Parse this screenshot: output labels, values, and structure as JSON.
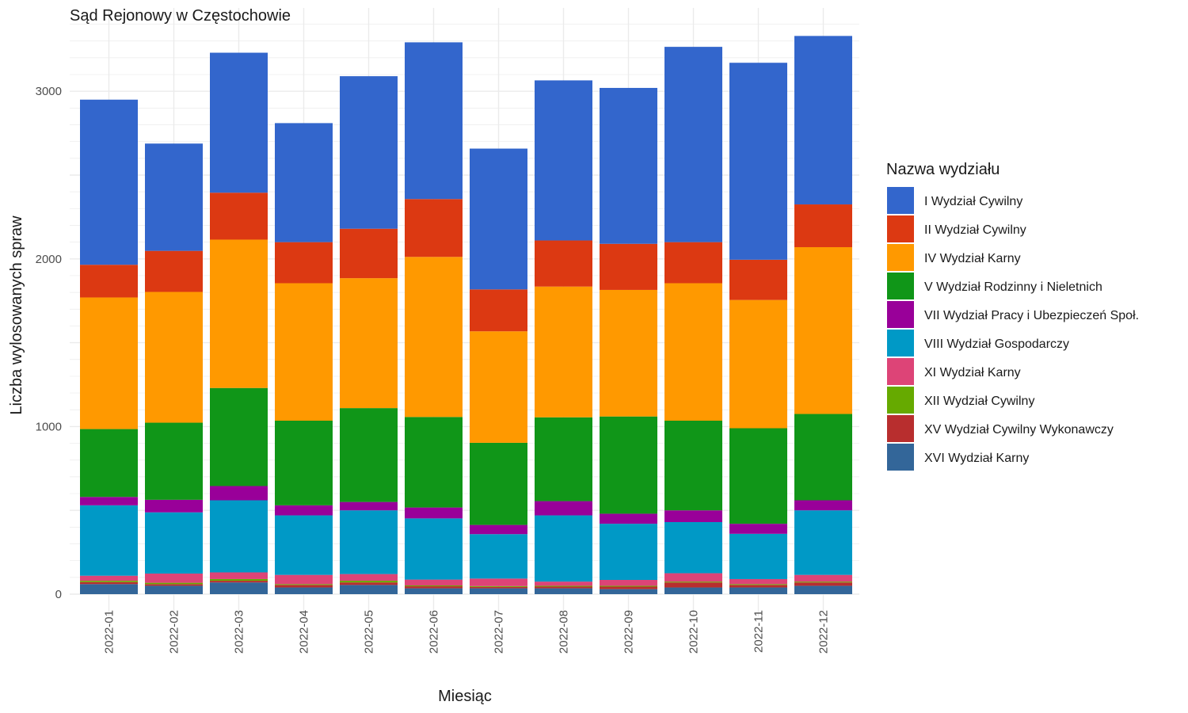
{
  "chart_data": {
    "type": "bar",
    "stacked": true,
    "title": "Sąd Rejonowy w Częstochowie",
    "xlabel": "Miesiąc",
    "ylabel": "Liczba wylosowanych spraw",
    "ylim": [
      0,
      3400
    ],
    "yticks": [
      0,
      1000,
      2000,
      3000
    ],
    "grid": true,
    "legend": {
      "title": "Nazwa wydziału",
      "position": "right"
    },
    "categories": [
      "2022-01",
      "2022-02",
      "2022-03",
      "2022-04",
      "2022-05",
      "2022-06",
      "2022-07",
      "2022-08",
      "2022-09",
      "2022-10",
      "2022-11",
      "2022-12"
    ],
    "series": [
      {
        "name": "XVI Wydział Karny",
        "color": "#336699",
        "values": [
          60,
          50,
          70,
          40,
          55,
          35,
          35,
          35,
          30,
          40,
          40,
          50
        ]
      },
      {
        "name": "XV Wydział Cywilny Wykonawczy",
        "color": "#B82E2E",
        "values": [
          12,
          10,
          10,
          15,
          15,
          12,
          8,
          10,
          15,
          30,
          15,
          20
        ]
      },
      {
        "name": "XII Wydział Cywilny",
        "color": "#66AA00",
        "values": [
          8,
          8,
          10,
          5,
          10,
          5,
          5,
          5,
          5,
          5,
          5,
          5
        ]
      },
      {
        "name": "XI Wydział Karny",
        "color": "#DD4477",
        "values": [
          30,
          55,
          40,
          55,
          40,
          35,
          45,
          25,
          35,
          50,
          30,
          40
        ]
      },
      {
        "name": "VIII Wydział Gospodarczy",
        "color": "#0099C6",
        "values": [
          420,
          365,
          430,
          355,
          380,
          365,
          265,
          395,
          335,
          305,
          270,
          385
        ]
      },
      {
        "name": "VII Wydział Pracy i Ubezpieczeń Społ.",
        "color": "#990099",
        "values": [
          50,
          75,
          85,
          60,
          50,
          65,
          55,
          85,
          60,
          70,
          60,
          60
        ]
      },
      {
        "name": "V Wydział Rodzinny i Nieletnich",
        "color": "#109618",
        "values": [
          405,
          460,
          585,
          505,
          560,
          540,
          490,
          500,
          580,
          535,
          570,
          515
        ]
      },
      {
        "name": "IV Wydział Karny",
        "color": "#FF9900",
        "values": [
          785,
          780,
          885,
          820,
          775,
          955,
          665,
          780,
          755,
          820,
          765,
          995
        ]
      },
      {
        "name": "II Wydział Cywilny",
        "color": "#DC3912",
        "values": [
          195,
          245,
          280,
          245,
          295,
          345,
          250,
          275,
          275,
          245,
          240,
          255
        ]
      },
      {
        "name": "I Wydział Cywilny",
        "color": "#3366CC",
        "values": [
          985,
          640,
          835,
          710,
          910,
          935,
          840,
          955,
          930,
          1165,
          1175,
          1005
        ]
      }
    ]
  }
}
